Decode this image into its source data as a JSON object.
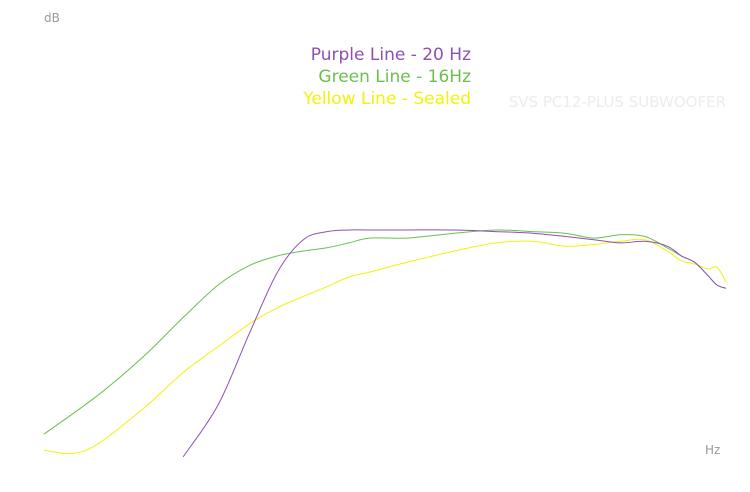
{
  "chart_data": {
    "type": "line",
    "title": "",
    "xlabel": "Hz",
    "ylabel": "dB",
    "grid": false,
    "legend_placement": "top-center",
    "watermark": "SVS PC12-PLUS SUBWOOFER",
    "xlim": [
      10,
      100
    ],
    "ylim": [
      0,
      100
    ],
    "series": [
      {
        "name": "Purple Line - 20 Hz",
        "color": "#8e4fb4",
        "x": [
          16,
          18,
          20,
          22,
          24,
          26,
          28,
          30,
          34,
          40,
          46,
          52,
          58,
          64,
          70,
          76,
          82,
          86,
          90,
          94,
          97,
          100
        ],
        "y": [
          1,
          17,
          39,
          58,
          68,
          70.5,
          71,
          71,
          71,
          71,
          70.5,
          70,
          69,
          68,
          67,
          67.5,
          66,
          63,
          61,
          57,
          54,
          53
        ]
      },
      {
        "name": "Green Line - 16Hz",
        "color": "#6cbf4f",
        "x": [
          10,
          12,
          14,
          16,
          18,
          20,
          22,
          24,
          26,
          28,
          30,
          34,
          40,
          46,
          52,
          58,
          64,
          70,
          76,
          82,
          86,
          90,
          94,
          97,
          100
        ],
        "y": [
          8,
          20,
          32,
          44,
          54,
          60,
          63,
          64.5,
          65.5,
          67,
          68.5,
          68.5,
          70,
          71,
          70.5,
          70,
          68.5,
          69.5,
          69,
          65.5,
          63,
          61,
          57,
          54,
          53
        ]
      },
      {
        "name": "Yellow Line - Sealed",
        "color": "#f2f20a",
        "x": [
          10,
          11,
          12,
          14,
          16,
          18,
          20,
          22,
          24,
          26,
          28,
          30,
          34,
          40,
          46,
          52,
          58,
          64,
          70,
          76,
          82,
          86,
          90,
          94,
          97,
          100
        ],
        "y": [
          3,
          2,
          5,
          16,
          27,
          35,
          42,
          47,
          50.5,
          53.5,
          56.5,
          58,
          61,
          64.5,
          67,
          67.5,
          66,
          66.5,
          67.5,
          68,
          64.5,
          61.5,
          60.5,
          59,
          59.5,
          55
        ]
      }
    ]
  }
}
